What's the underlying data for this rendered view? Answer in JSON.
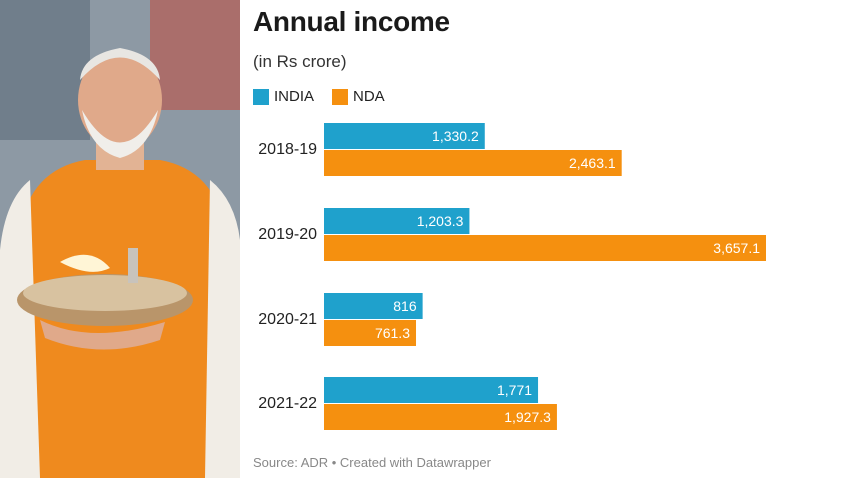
{
  "title": "Annual income",
  "subtitle": "(in Rs crore)",
  "source": "Source: ADR • Created with Datawrapper",
  "photo": {
    "description_icon": "person-holding-lamp-photo"
  },
  "chart_data": {
    "type": "bar",
    "orientation": "horizontal",
    "title": "Annual income",
    "subtitle": "(in Rs crore)",
    "categories": [
      "2018-19",
      "2019-20",
      "2020-21",
      "2021-22"
    ],
    "series": [
      {
        "name": "INDIA",
        "color": "#1fa1cc",
        "values": [
          1330.2,
          1203.3,
          816,
          1771
        ],
        "labels": [
          "1,330.2",
          "1,203.3",
          "816",
          "1,771"
        ]
      },
      {
        "name": "NDA",
        "color": "#f5900f",
        "values": [
          2463.1,
          3657.1,
          761.3,
          1927.3
        ],
        "labels": [
          "2,463.1",
          "3,657.1",
          "761.3",
          "1,927.3"
        ]
      }
    ],
    "xlim": [
      0,
      3657.1
    ],
    "grid": false,
    "legend_position": "top-left"
  }
}
